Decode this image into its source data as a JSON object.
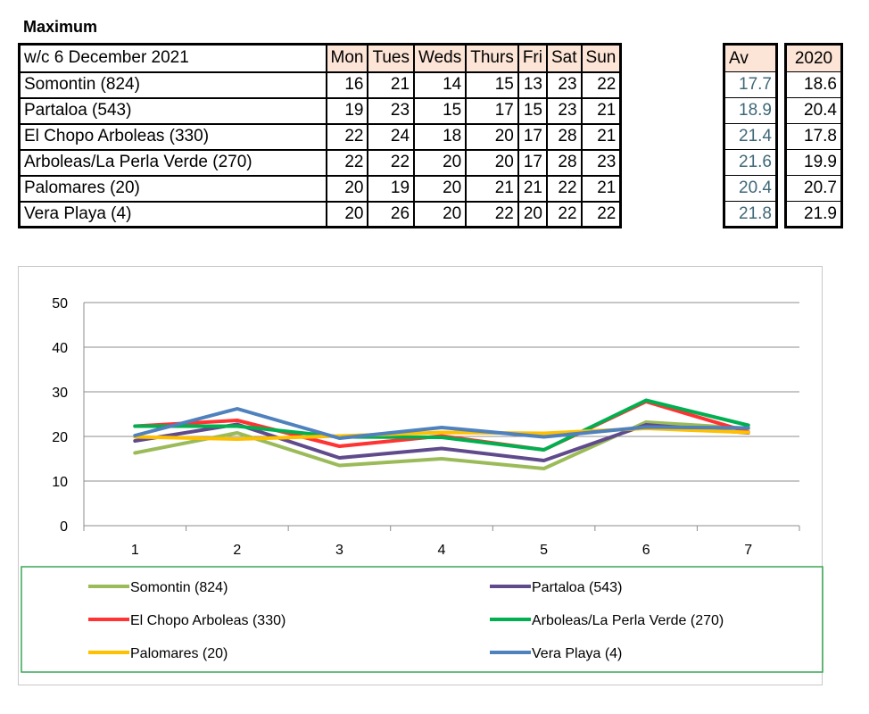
{
  "section_title": "Maximum",
  "table": {
    "week_label": "w/c 6 December 2021",
    "day_headers": [
      "Mon",
      "Tues",
      "Weds",
      "Thurs",
      "Fri",
      "Sat",
      "Sun"
    ],
    "av_header": "Av",
    "prev_year_header": "2020",
    "rows": [
      {
        "location": "Somontin (824)",
        "days": [
          "16",
          "21",
          "14",
          "15",
          "13",
          "23",
          "22"
        ],
        "av": "17.7",
        "prev": "18.6"
      },
      {
        "location": "Partaloa (543)",
        "days": [
          "19",
          "23",
          "15",
          "17",
          "15",
          "23",
          "21"
        ],
        "av": "18.9",
        "prev": "20.4"
      },
      {
        "location": "El Chopo  Arboleas (330)",
        "days": [
          "22",
          "24",
          "18",
          "20",
          "17",
          "28",
          "21"
        ],
        "av": "21.4",
        "prev": "17.8"
      },
      {
        "location": "Arboleas/La Perla Verde (270)",
        "days": [
          "22",
          "22",
          "20",
          "20",
          "17",
          "28",
          "23"
        ],
        "av": "21.6",
        "prev": "19.9"
      },
      {
        "location": "Palomares (20)",
        "days": [
          "20",
          "19",
          "20",
          "21",
          "21",
          "22",
          "21"
        ],
        "av": "20.4",
        "prev": "20.7"
      },
      {
        "location": "Vera Playa (4)",
        "days": [
          "20",
          "26",
          "20",
          "22",
          "20",
          "22",
          "22"
        ],
        "av": "21.8",
        "prev": "21.9"
      }
    ]
  },
  "chart_data": {
    "type": "line",
    "categories": [
      "1",
      "2",
      "3",
      "4",
      "5",
      "6",
      "7"
    ],
    "ylim": [
      0,
      50
    ],
    "yticks": [
      "0",
      "10",
      "20",
      "30",
      "40",
      "50"
    ],
    "grid": true,
    "legend_position": "bottom",
    "series": [
      {
        "name": "Somontin (824)",
        "color": "#9bbb59",
        "values": [
          16.3,
          20.8,
          13.5,
          15,
          12.8,
          23.2,
          21.8
        ]
      },
      {
        "name": "Partaloa (543)",
        "color": "#5f4b8b",
        "values": [
          19,
          22.7,
          15.2,
          17.3,
          14.6,
          22.6,
          20.8
        ]
      },
      {
        "name": "El Chopo  Arboleas (330)",
        "color": "#ff3333",
        "values": [
          22.3,
          23.6,
          17.8,
          20.1,
          17,
          27.8,
          21
        ]
      },
      {
        "name": "Arboleas/La Perla Verde (270)",
        "color": "#00b050",
        "values": [
          22.3,
          22.3,
          19.9,
          19.8,
          17,
          28.1,
          22.5
        ]
      },
      {
        "name": "Palomares (20)",
        "color": "#ffc000",
        "values": [
          19.9,
          19.4,
          20.1,
          20.9,
          20.7,
          21.8,
          20.9
        ]
      },
      {
        "name": "Vera Playa (4)",
        "color": "#4f81bd",
        "values": [
          20.2,
          26.2,
          19.6,
          22,
          19.9,
          22.1,
          21.9
        ]
      }
    ]
  }
}
